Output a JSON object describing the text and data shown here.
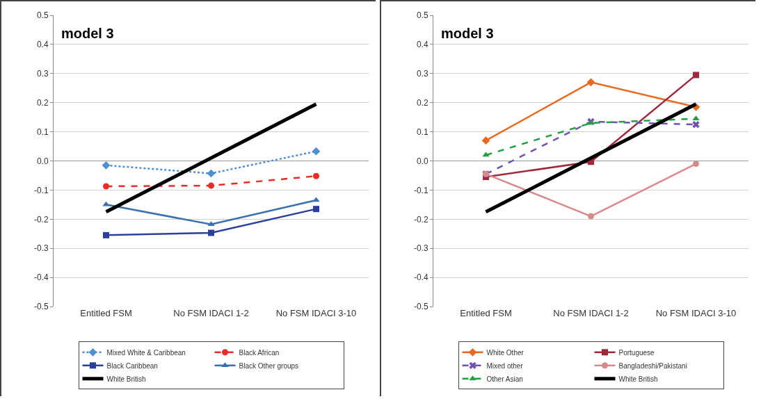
{
  "chart_data": [
    {
      "type": "line",
      "title": "model 3",
      "categories": [
        "Entitled FSM",
        "No FSM IDACI 1-2",
        "No FSM IDACI 3-10"
      ],
      "series": [
        {
          "name": "Mixed White & Caribbean",
          "color": "#4f8fd0",
          "marker": "diamond",
          "line_style": "dotted",
          "values": [
            -0.015,
            -0.043,
            0.033
          ]
        },
        {
          "name": "Black African",
          "color": "#ee2a24",
          "marker": "circle",
          "line_style": "dashed",
          "values": [
            -0.087,
            -0.085,
            -0.052
          ]
        },
        {
          "name": "Black Caribbean",
          "color": "#2b3f9e",
          "marker": "square",
          "line_style": "solid",
          "values": [
            -0.255,
            -0.247,
            -0.165
          ]
        },
        {
          "name": "Black Other groups",
          "color": "#3a6fb0",
          "marker": "triangle",
          "line_style": "solid",
          "values": [
            -0.15,
            -0.218,
            -0.135
          ]
        },
        {
          "name": "White British",
          "color": "#000000",
          "marker": "none",
          "line_style": "solid",
          "values": [
            -0.175,
            0.01,
            0.195
          ]
        }
      ],
      "ylim": [
        -0.5,
        0.5
      ],
      "yticks": [
        {
          "value": -0.5,
          "label": "-0.5"
        },
        {
          "value": -0.4,
          "label": "-0.4"
        },
        {
          "value": -0.3,
          "label": "-0.3"
        },
        {
          "value": -0.2,
          "label": "-0.2"
        },
        {
          "value": -0.1,
          "label": "-0.1"
        },
        {
          "value": 0,
          "label": "0.0"
        },
        {
          "value": 0.1,
          "label": "0.1"
        },
        {
          "value": 0.2,
          "label": "0.2"
        },
        {
          "value": 0.3,
          "label": "0.3"
        },
        {
          "value": 0.4,
          "label": "0.4"
        },
        {
          "value": 0.5,
          "label": "0.5"
        }
      ],
      "grid": "y",
      "legend": "bottom"
    },
    {
      "type": "line",
      "title": "model 3",
      "categories": [
        "Entitled FSM",
        "No FSM IDACI 1-2",
        "No FSM IDACI 3-10"
      ],
      "series": [
        {
          "name": "White Other",
          "color": "#e8691f",
          "marker": "diamond",
          "line_style": "solid",
          "values": [
            0.07,
            0.27,
            0.185
          ]
        },
        {
          "name": "Portuguese",
          "color": "#a0283a",
          "marker": "square",
          "line_style": "solid",
          "values": [
            -0.055,
            -0.003,
            0.295
          ]
        },
        {
          "name": "Mixed other",
          "color": "#7050b0",
          "marker": "cross",
          "line_style": "dashed",
          "values": [
            -0.045,
            0.135,
            0.125
          ]
        },
        {
          "name": "Bangladeshi/Pakistani",
          "color": "#d88a8a",
          "marker": "circle",
          "line_style": "solid",
          "values": [
            -0.045,
            -0.19,
            -0.01
          ]
        },
        {
          "name": "Other Asian",
          "color": "#20a040",
          "marker": "triangle",
          "line_style": "dashed",
          "values": [
            0.02,
            0.13,
            0.145
          ]
        },
        {
          "name": "White British",
          "color": "#000000",
          "marker": "none",
          "line_style": "solid",
          "values": [
            -0.175,
            0.01,
            0.195
          ]
        }
      ],
      "ylim": [
        -0.5,
        0.5
      ],
      "yticks": [
        {
          "value": -0.5,
          "label": "-0.5"
        },
        {
          "value": -0.4,
          "label": "-0.4"
        },
        {
          "value": -0.3,
          "label": "-0.3"
        },
        {
          "value": -0.2,
          "label": "-0.2"
        },
        {
          "value": -0.1,
          "label": "-0.1"
        },
        {
          "value": 0,
          "label": "0.0"
        },
        {
          "value": 0.1,
          "label": "0.1"
        },
        {
          "value": 0.2,
          "label": "0.2"
        },
        {
          "value": 0.3,
          "label": "0.3"
        },
        {
          "value": 0.4,
          "label": "0.4"
        },
        {
          "value": 0.5,
          "label": "0.5"
        }
      ],
      "grid": "y",
      "legend": "bottom"
    }
  ]
}
